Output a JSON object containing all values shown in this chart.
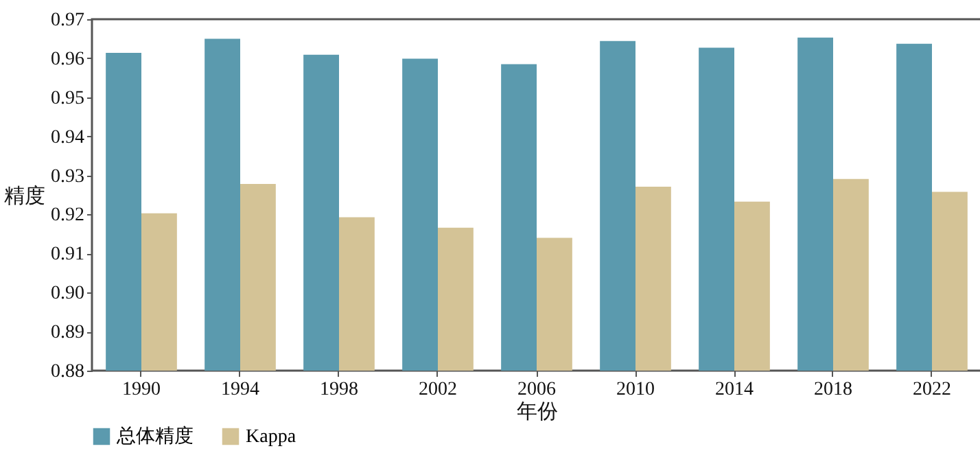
{
  "chart_data": {
    "type": "bar",
    "xlabel": "年份",
    "ylabel": "精度",
    "categories": [
      "1990",
      "1994",
      "1998",
      "2002",
      "2006",
      "2010",
      "2014",
      "2018",
      "2022"
    ],
    "series": [
      {
        "name": "总体精度",
        "color": "#5b9aae",
        "values": [
          0.9614,
          0.965,
          0.9609,
          0.9599,
          0.9585,
          0.9644,
          0.9627,
          0.9653,
          0.9637
        ]
      },
      {
        "name": "Kappa",
        "color": "#d4c396",
        "values": [
          0.9203,
          0.9278,
          0.9193,
          0.9166,
          0.914,
          0.9271,
          0.9233,
          0.9291,
          0.9258
        ]
      }
    ],
    "ylim": [
      0.88,
      0.97
    ],
    "yticks": [
      {
        "value": 0.88,
        "label": "0.88"
      },
      {
        "value": 0.89,
        "label": "0.89"
      },
      {
        "value": 0.9,
        "label": "0.90"
      },
      {
        "value": 0.91,
        "label": "0.91"
      },
      {
        "value": 0.92,
        "label": "0.92"
      },
      {
        "value": 0.93,
        "label": "0.93"
      },
      {
        "value": 0.94,
        "label": "0.94"
      },
      {
        "value": 0.95,
        "label": "0.95"
      },
      {
        "value": 0.96,
        "label": "0.96"
      },
      {
        "value": 0.97,
        "label": "0.97"
      }
    ],
    "grid": false,
    "legend": "bottom"
  }
}
